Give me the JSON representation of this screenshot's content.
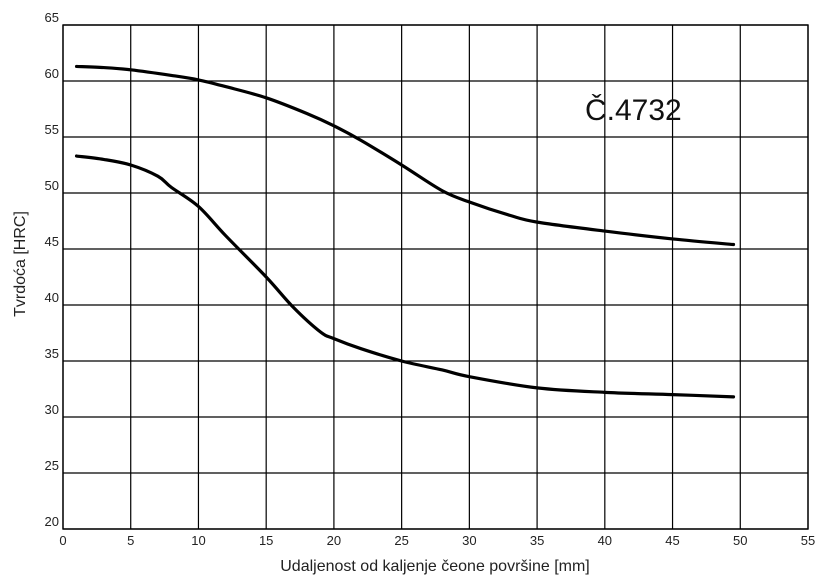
{
  "chart_data": {
    "type": "line",
    "xlabel": "Udaljenost od kaljenje čeone površine [mm]",
    "ylabel": "Tvrdoća [HRC]",
    "xlim": [
      0,
      55
    ],
    "ylim": [
      20,
      65
    ],
    "x_ticks": [
      "0",
      "5",
      "10",
      "15",
      "20",
      "25",
      "30",
      "35",
      "40",
      "45",
      "50",
      "55"
    ],
    "y_ticks": [
      "20",
      "25",
      "30",
      "35",
      "40",
      "45",
      "50",
      "55",
      "60",
      "65"
    ],
    "grid": true,
    "annotation": "Č.4732",
    "series": [
      {
        "x": [
          1,
          3,
          5,
          8,
          10,
          12,
          15,
          18,
          20,
          22,
          25,
          28,
          30,
          33,
          35,
          40,
          45,
          49.5
        ],
        "values": [
          61.3,
          61.2,
          61.0,
          60.5,
          60.1,
          59.5,
          58.5,
          57.1,
          56.0,
          54.7,
          52.5,
          50.2,
          49.2,
          48.0,
          47.4,
          46.6,
          45.9,
          45.4
        ]
      },
      {
        "x": [
          1,
          3,
          5,
          7,
          8,
          10,
          12,
          15,
          17,
          19,
          20,
          22,
          25,
          28,
          30,
          35,
          40,
          45,
          49.5
        ],
        "values": [
          53.3,
          53.0,
          52.5,
          51.5,
          50.5,
          48.8,
          46.2,
          42.5,
          39.8,
          37.6,
          37.0,
          36.1,
          35.0,
          34.2,
          33.6,
          32.6,
          32.2,
          32.0,
          31.8
        ]
      }
    ]
  }
}
